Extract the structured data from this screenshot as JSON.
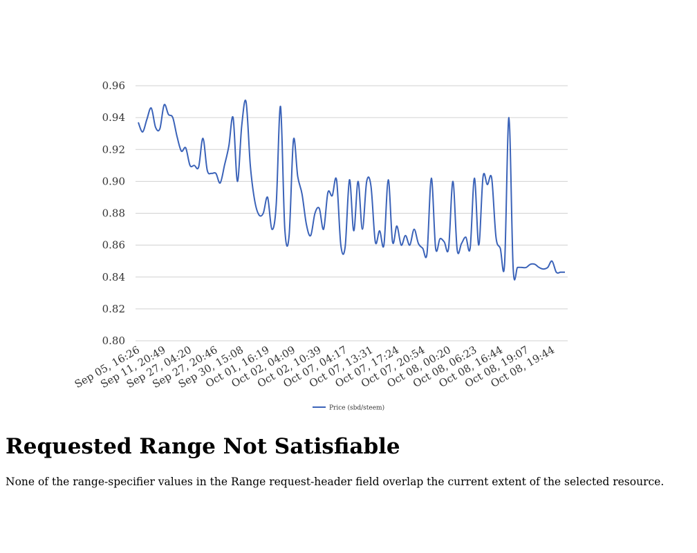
{
  "chart_data": {
    "type": "line",
    "title": "",
    "xlabel": "",
    "ylabel": "",
    "ylim": [
      0.8,
      0.96
    ],
    "yticks": [
      0.8,
      0.82,
      0.84,
      0.86,
      0.88,
      0.9,
      0.92,
      0.94,
      0.96
    ],
    "ytick_labels": [
      "0.80",
      "0.82",
      "0.84",
      "0.86",
      "0.88",
      "0.90",
      "0.92",
      "0.94",
      "0.96"
    ],
    "x_tick_labels": [
      "Sep 05, 16:26",
      "Sep 11, 20:49",
      "Sep 27, 04:20",
      "Sep 27, 20:46",
      "Sep 30, 15:08",
      "Oct 01, 16:19",
      "Oct 02, 04:09",
      "Oct 02, 10:39",
      "Oct 07, 04:17",
      "Oct 07, 13:31",
      "Oct 07, 17:24",
      "Oct 07, 20:54",
      "Oct 08, 00:20",
      "Oct 08, 06:23",
      "Oct 08, 16:44",
      "Oct 08, 19:07",
      "Oct 08, 19:44"
    ],
    "grid": true,
    "legend_position": "bottom",
    "series": [
      {
        "name": "Price (sbd/steem)",
        "color": "#3a62b8",
        "values": [
          0.937,
          0.931,
          0.939,
          0.946,
          0.934,
          0.933,
          0.948,
          0.942,
          0.94,
          0.928,
          0.919,
          0.921,
          0.91,
          0.91,
          0.909,
          0.927,
          0.907,
          0.905,
          0.905,
          0.899,
          0.91,
          0.922,
          0.94,
          0.9,
          0.935,
          0.95,
          0.91,
          0.888,
          0.879,
          0.88,
          0.89,
          0.87,
          0.885,
          0.947,
          0.87,
          0.866,
          0.926,
          0.903,
          0.892,
          0.873,
          0.866,
          0.88,
          0.883,
          0.87,
          0.893,
          0.891,
          0.901,
          0.86,
          0.859,
          0.901,
          0.869,
          0.9,
          0.87,
          0.9,
          0.897,
          0.862,
          0.869,
          0.86,
          0.901,
          0.862,
          0.872,
          0.86,
          0.866,
          0.86,
          0.87,
          0.861,
          0.858,
          0.855,
          0.902,
          0.858,
          0.864,
          0.862,
          0.858,
          0.9,
          0.857,
          0.861,
          0.865,
          0.858,
          0.902,
          0.86,
          0.903,
          0.898,
          0.902,
          0.865,
          0.858,
          0.848,
          0.94,
          0.845,
          0.846,
          0.846,
          0.846,
          0.848,
          0.848,
          0.846,
          0.845,
          0.846,
          0.85,
          0.843,
          0.843,
          0.843
        ]
      }
    ]
  },
  "page": {
    "heading": "Requested Range Not Satisfiable",
    "message": "None of the range-specifier values in the Range request-header field overlap the current extent of the selected resource."
  }
}
